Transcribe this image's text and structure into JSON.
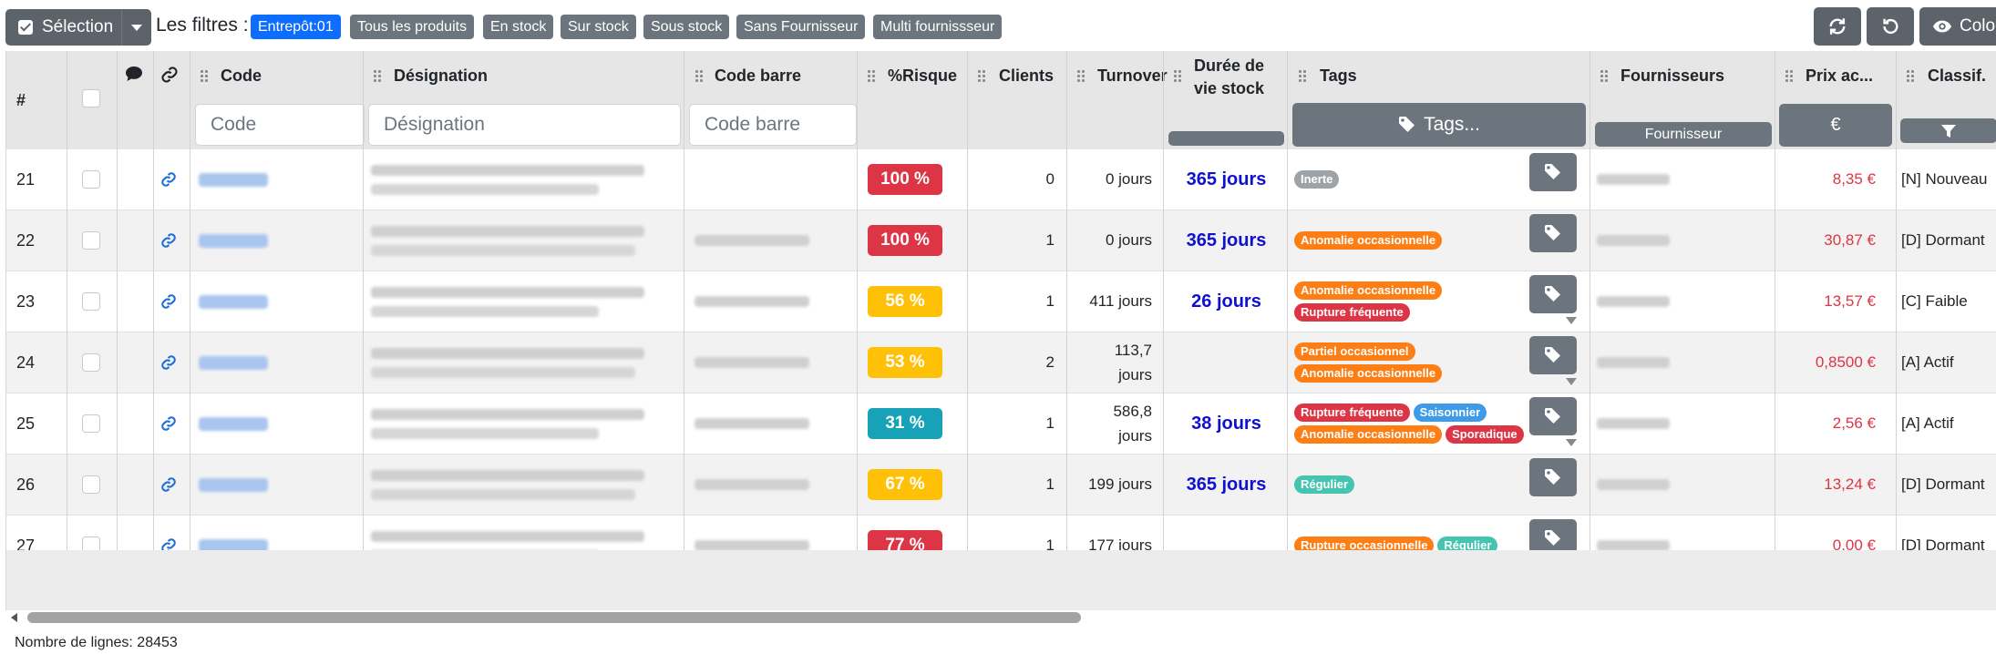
{
  "toolbar": {
    "selection_label": "Sélection",
    "filters_label": "Les filtres :",
    "filters": [
      {
        "label": "Entrepôt:01",
        "active": true
      },
      {
        "label": "Tous les produits",
        "active": false
      },
      {
        "label": "En stock",
        "active": false
      },
      {
        "label": "Sur stock",
        "active": false
      },
      {
        "label": "Sous stock",
        "active": false
      },
      {
        "label": "Sans Fournisseur",
        "active": false
      },
      {
        "label": "Multi fournissseur",
        "active": false
      }
    ],
    "columns_button_label": "Colo"
  },
  "columns": {
    "num": "#",
    "code": "Code",
    "designation": "Désignation",
    "barcode": "Code barre",
    "risk": "%Risque",
    "clients": "Clients",
    "turnover": "Turnover",
    "duree_line1": "Durée de",
    "duree_line2": "vie stock",
    "tags": "Tags",
    "fournisseurs": "Fournisseurs",
    "prix": "Prix ac...",
    "classif": "Classif."
  },
  "filters_row": {
    "code_placeholder": "Code",
    "designation_placeholder": "Désignation",
    "barcode_placeholder": "Code barre",
    "tags_button": "Tags...",
    "fournisseur_button": "Fournisseur",
    "prix_button": "€"
  },
  "colors": {
    "risk_red": "#dc3545",
    "risk_yellow": "#ffc107",
    "risk_teal": "#17a2b8",
    "tag_grey": "#9ea3a8",
    "tag_orange": "#fd7e14",
    "tag_red": "#dc3545",
    "tag_blue": "#3d9be9",
    "tag_teal": "#45c4b0"
  },
  "rows": [
    {
      "num": "21",
      "risk": "100 %",
      "risk_color": "red",
      "clients": "0",
      "turnover": "0 jours",
      "duree": "365 jours",
      "tags": [
        {
          "label": "Inerte",
          "color": "grey"
        }
      ],
      "prix": "8,35 €",
      "classif": "[N] Nouveau",
      "has_barcode": false,
      "expand": false
    },
    {
      "num": "22",
      "risk": "100 %",
      "risk_color": "red",
      "clients": "1",
      "turnover": "0 jours",
      "duree": "365 jours",
      "tags": [
        {
          "label": "Anomalie occasionnelle",
          "color": "orange"
        }
      ],
      "prix": "30,87 €",
      "classif": "[D] Dormant",
      "has_barcode": true,
      "expand": false
    },
    {
      "num": "23",
      "risk": "56 %",
      "risk_color": "yellow",
      "clients": "1",
      "turnover": "411 jours",
      "duree": "26 jours",
      "tags": [
        {
          "label": "Anomalie occasionnelle",
          "color": "orange"
        },
        {
          "label": "Rupture fréquente",
          "color": "red"
        }
      ],
      "prix": "13,57 €",
      "classif": "[C] Faible",
      "has_barcode": true,
      "expand": true
    },
    {
      "num": "24",
      "risk": "53 %",
      "risk_color": "yellow",
      "clients": "2",
      "turnover": "113,7 jours",
      "turnover_l1": "113,7",
      "turnover_l2": "jours",
      "duree": "",
      "tags": [
        {
          "label": "Partiel occasionnel",
          "color": "orange"
        },
        {
          "label": "Anomalie occasionnelle",
          "color": "orange"
        }
      ],
      "prix": "0,8500 €",
      "classif": "[A] Actif",
      "has_barcode": true,
      "expand": true
    },
    {
      "num": "25",
      "risk": "31 %",
      "risk_color": "teal",
      "clients": "1",
      "turnover": "586,8 jours",
      "turnover_l1": "586,8",
      "turnover_l2": "jours",
      "duree": "38 jours",
      "tags": [
        {
          "label": "Rupture fréquente",
          "color": "red"
        },
        {
          "label": "Saisonnier",
          "color": "blue"
        },
        {
          "label": "Anomalie occasionnelle",
          "color": "orange"
        },
        {
          "label": "Sporadique",
          "color": "red"
        }
      ],
      "prix": "2,56 €",
      "classif": "[A] Actif",
      "has_barcode": true,
      "expand": true
    },
    {
      "num": "26",
      "risk": "67 %",
      "risk_color": "yellow",
      "clients": "1",
      "turnover": "199 jours",
      "duree": "365 jours",
      "tags": [
        {
          "label": "Régulier",
          "color": "teal"
        }
      ],
      "prix": "13,24 €",
      "classif": "[D] Dormant",
      "has_barcode": true,
      "expand": false
    },
    {
      "num": "27",
      "risk": "77 %",
      "risk_color": "red",
      "clients": "1",
      "turnover": "177 jours",
      "duree": "",
      "tags": [
        {
          "label": "Rupture occasionnelle",
          "color": "orange"
        },
        {
          "label": "Régulier",
          "color": "teal"
        }
      ],
      "prix": "0,00 €",
      "classif": "[D] Dormant",
      "has_barcode": true,
      "expand": false
    }
  ],
  "footer": {
    "row_count_label": "Nombre de lignes: 28453"
  }
}
